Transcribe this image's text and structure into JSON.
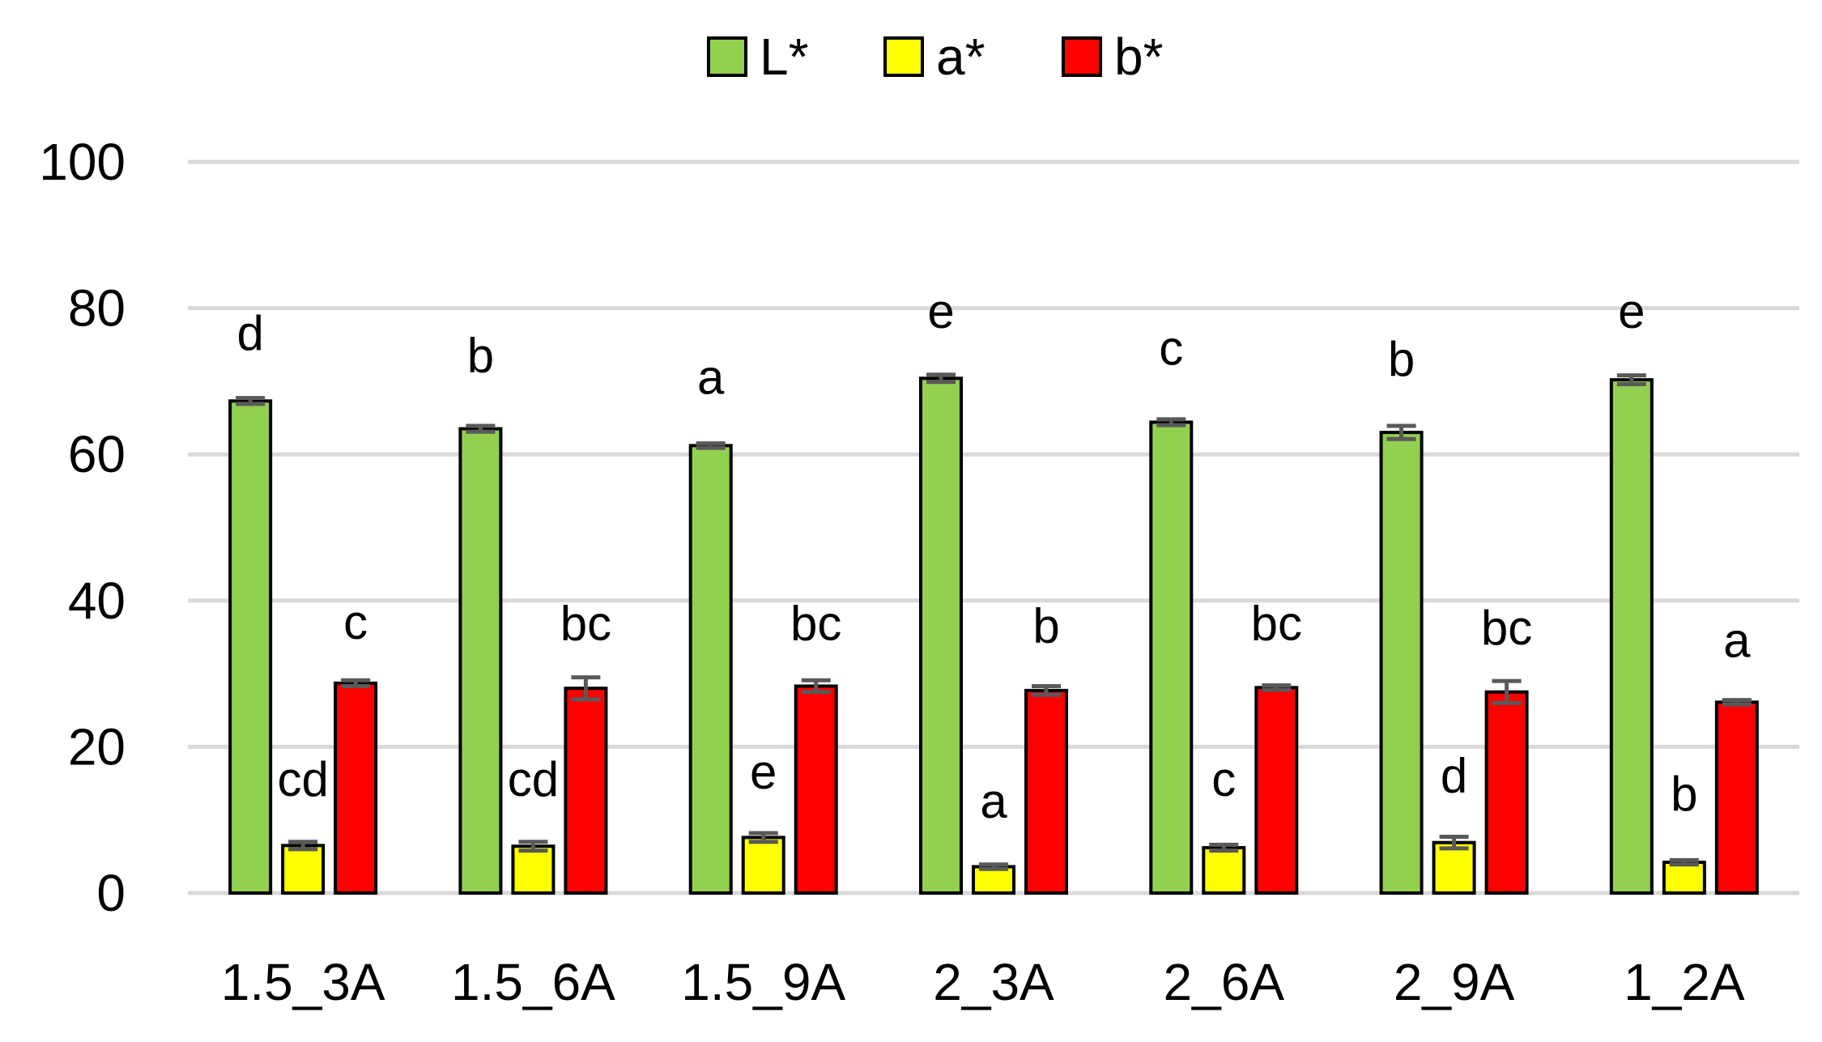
{
  "chart_data": {
    "type": "bar",
    "title": "",
    "xlabel": "",
    "ylabel": "",
    "ylim": [
      0,
      100
    ],
    "yticks": [
      0,
      20,
      40,
      60,
      80,
      100
    ],
    "grid": true,
    "legend_position": "top-center",
    "categories": [
      "1.5_3A",
      "1.5_6A",
      "1.5_9A",
      "2_3A",
      "2_6A",
      "2_9A",
      "1_2A"
    ],
    "series": [
      {
        "name": "L*",
        "color": "#92d050",
        "values": [
          67.3,
          63.5,
          61.2,
          70.4,
          64.4,
          63.0,
          70.2
        ],
        "errors": [
          0.4,
          0.4,
          0.3,
          0.5,
          0.4,
          0.9,
          0.6
        ],
        "labels": [
          "d",
          "b",
          "a",
          "e",
          "c",
          "b",
          "e"
        ],
        "label_values": [
          76.5,
          73.5,
          70.5,
          79.5,
          74.5,
          73.0,
          79.5
        ]
      },
      {
        "name": "a*",
        "color": "#ffff00",
        "values": [
          6.5,
          6.4,
          7.6,
          3.6,
          6.2,
          6.9,
          4.2
        ],
        "errors": [
          0.5,
          0.6,
          0.6,
          0.3,
          0.4,
          0.8,
          0.3
        ],
        "labels": [
          "cd",
          "cd",
          "e",
          "a",
          "c",
          "d",
          "b"
        ],
        "label_values": [
          15.5,
          15.5,
          16.5,
          12.5,
          15.5,
          16.0,
          13.5
        ]
      },
      {
        "name": "b*",
        "color": "#ff0000",
        "values": [
          28.7,
          28.0,
          28.3,
          27.7,
          28.1,
          27.5,
          26.1
        ],
        "errors": [
          0.4,
          1.5,
          0.8,
          0.6,
          0.3,
          1.5,
          0.3
        ],
        "labels": [
          "c",
          "bc",
          "bc",
          "b",
          "bc",
          "bc",
          "a"
        ],
        "label_values": [
          37.0,
          36.8,
          36.8,
          36.5,
          36.8,
          36.2,
          34.5
        ]
      }
    ]
  }
}
